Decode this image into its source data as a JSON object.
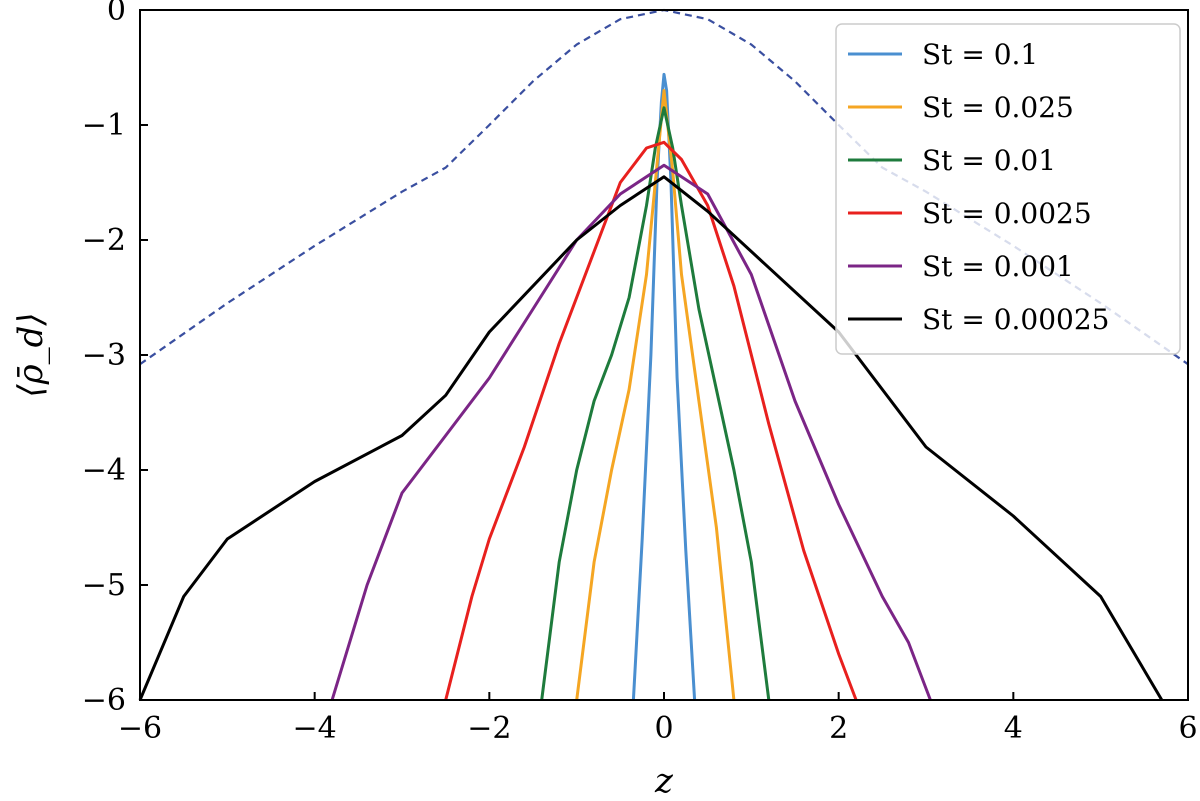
{
  "chart_data": {
    "type": "line",
    "xlabel": "z",
    "ylabel": "⟨ρ̄_d⟩",
    "xlim": [
      -6,
      6
    ],
    "ylim": [
      -6,
      0
    ],
    "xticks": [
      "−6",
      "−4",
      "−2",
      "0",
      "2",
      "4",
      "6"
    ],
    "yticks": [
      "0",
      "−1",
      "−2",
      "−3",
      "−4",
      "−5",
      "−6"
    ],
    "grid": false,
    "legend_position": "top-right",
    "reference_curve": {
      "style": "dashed",
      "color": "#3a4fa0",
      "x": [
        -6,
        -5,
        -4,
        -3,
        -2.5,
        -2,
        -1.5,
        -1,
        -0.5,
        0,
        0.5,
        1,
        1.5,
        2,
        2.5,
        3,
        4,
        5,
        6
      ],
      "y": [
        -3.08,
        -2.55,
        -2.05,
        -1.58,
        -1.37,
        -1.0,
        -0.62,
        -0.3,
        -0.08,
        0.0,
        -0.08,
        -0.3,
        -0.62,
        -1.0,
        -1.37,
        -1.58,
        -2.05,
        -2.55,
        -3.08
      ]
    },
    "series": [
      {
        "name": "St = 0.1",
        "color": "#4a8fd0",
        "x": [
          -0.35,
          -0.25,
          -0.15,
          -0.08,
          -0.03,
          0.0,
          0.03,
          0.08,
          0.15,
          0.25,
          0.35
        ],
        "y": [
          -6.0,
          -4.6,
          -3.0,
          -1.5,
          -0.8,
          -0.56,
          -0.7,
          -1.5,
          -3.2,
          -4.7,
          -6.0
        ]
      },
      {
        "name": "St = 0.025",
        "color": "#f5a623",
        "x": [
          -1.0,
          -0.8,
          -0.6,
          -0.4,
          -0.2,
          -0.1,
          0.0,
          0.1,
          0.2,
          0.4,
          0.6,
          0.8
        ],
        "y": [
          -6.0,
          -4.8,
          -4.0,
          -3.3,
          -2.3,
          -1.5,
          -0.7,
          -1.4,
          -2.3,
          -3.4,
          -4.5,
          -6.0
        ]
      },
      {
        "name": "St = 0.01",
        "color": "#1e7b3c",
        "x": [
          -1.4,
          -1.2,
          -1.0,
          -0.8,
          -0.6,
          -0.4,
          -0.2,
          -0.1,
          0.0,
          0.1,
          0.2,
          0.4,
          0.6,
          0.8,
          1.0,
          1.2
        ],
        "y": [
          -6.0,
          -4.8,
          -4.0,
          -3.4,
          -3.0,
          -2.5,
          -1.7,
          -1.2,
          -0.85,
          -1.2,
          -1.7,
          -2.6,
          -3.3,
          -4.0,
          -4.8,
          -6.0
        ]
      },
      {
        "name": "St = 0.0025",
        "color": "#e8201e",
        "x": [
          -2.5,
          -2.2,
          -2.0,
          -1.6,
          -1.2,
          -0.8,
          -0.5,
          -0.2,
          0.0,
          0.2,
          0.5,
          0.8,
          1.2,
          1.6,
          2.0,
          2.2
        ],
        "y": [
          -6.0,
          -5.1,
          -4.6,
          -3.8,
          -2.9,
          -2.1,
          -1.5,
          -1.2,
          -1.15,
          -1.3,
          -1.7,
          -2.4,
          -3.6,
          -4.7,
          -5.6,
          -6.0
        ]
      },
      {
        "name": "St = 0.001",
        "color": "#7b2586",
        "x": [
          -3.8,
          -3.4,
          -3.0,
          -2.5,
          -2.0,
          -1.5,
          -1.0,
          -0.5,
          0.0,
          0.5,
          1.0,
          1.5,
          2.0,
          2.5,
          2.8,
          3.05
        ],
        "y": [
          -6.0,
          -5.0,
          -4.2,
          -3.7,
          -3.2,
          -2.6,
          -2.0,
          -1.6,
          -1.35,
          -1.6,
          -2.3,
          -3.4,
          -4.3,
          -5.1,
          -5.5,
          -6.0
        ]
      },
      {
        "name": "St = 0.00025",
        "color": "#000000",
        "x": [
          -6.0,
          -5.5,
          -5.0,
          -4.0,
          -3.0,
          -2.5,
          -2.0,
          -1.0,
          -0.5,
          0.0,
          0.5,
          1.0,
          2.0,
          3.0,
          4.0,
          5.0,
          5.7
        ],
        "y": [
          -6.0,
          -5.1,
          -4.6,
          -4.1,
          -3.7,
          -3.35,
          -2.8,
          -2.0,
          -1.7,
          -1.45,
          -1.75,
          -2.1,
          -2.8,
          -3.8,
          -4.4,
          -5.1,
          -6.0
        ]
      }
    ]
  }
}
